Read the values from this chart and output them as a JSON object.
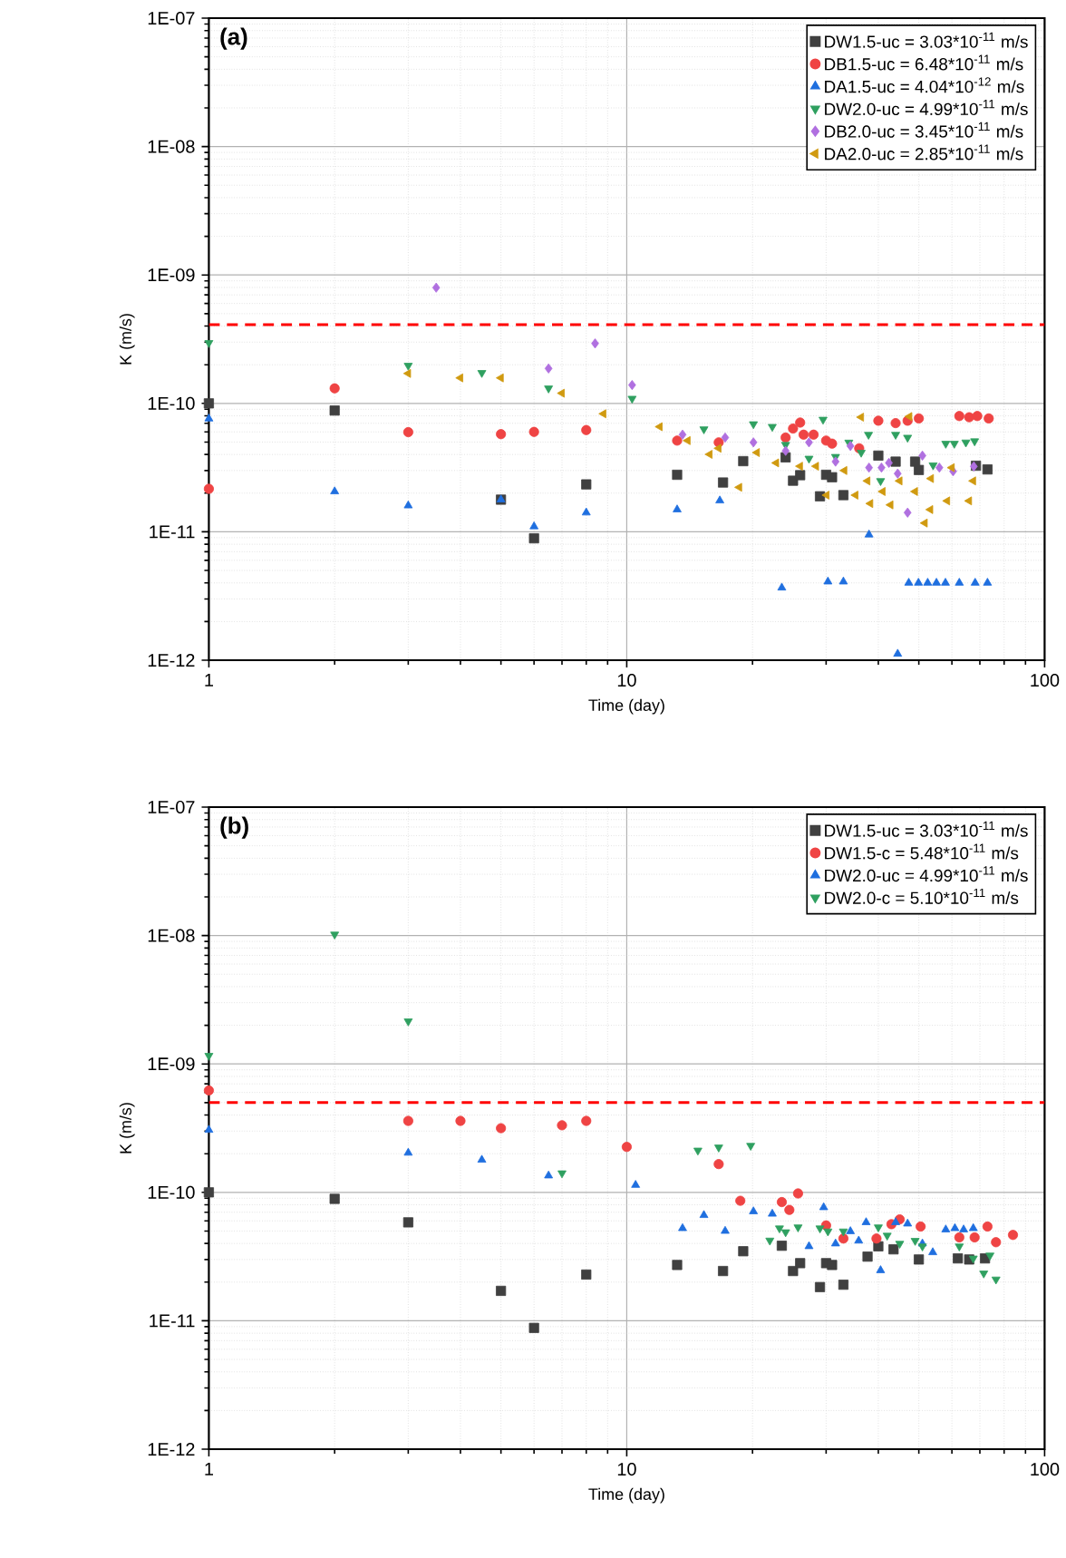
{
  "chart_data": [
    {
      "type": "scatter",
      "title": "(a)",
      "xlabel": "Time (day)",
      "ylabel": "K (m/s)",
      "log": "xy",
      "grid": true,
      "legend": "top right",
      "xlim": [
        1,
        100
      ],
      "ylim": [
        1e-12,
        1e-07
      ],
      "xticks": [
        1,
        10,
        100
      ],
      "yticks": [
        {
          "value": 1e-12,
          "label": "1E-12"
        },
        {
          "value": 1e-11,
          "label": "1E-11"
        },
        {
          "value": 1e-10,
          "label": "1E-10"
        },
        {
          "value": 1e-09,
          "label": "1E-09"
        },
        {
          "value": 1e-08,
          "label": "1E-08"
        },
        {
          "value": 1e-07,
          "label": "1E-07"
        }
      ],
      "ref_lines": [
        {
          "axis": "y",
          "value": 4.1e-10,
          "color": "#ff0000",
          "line_style": "dashed"
        }
      ],
      "series": [
        {
          "name": "DW1.5-uc  = 3.03*10$^{-11}$ m/s",
          "color": "#404040",
          "marker": "square",
          "x": [
            1,
            2,
            5,
            6,
            8,
            13.2,
            17,
            19,
            24,
            25,
            26,
            29,
            30,
            31,
            33,
            40,
            44,
            49,
            50,
            68.5,
            73
          ],
          "values": [
            1e-10,
            8.8e-11,
            1.78e-11,
            8.9e-12,
            2.34e-11,
            2.78e-11,
            2.42e-11,
            3.55e-11,
            3.8e-11,
            2.5e-11,
            2.76e-11,
            1.89e-11,
            2.78e-11,
            2.66e-11,
            1.93e-11,
            3.92e-11,
            3.52e-11,
            3.52e-11,
            3.03e-11,
            3.27e-11,
            3.06e-11
          ]
        },
        {
          "name": "DB1.5-uc  = 6.48*10$^{-11}$ m/s",
          "color": "#ef4444",
          "marker": "circle",
          "x": [
            1,
            2,
            3,
            5,
            6,
            8,
            13.2,
            16.6,
            24,
            25,
            26,
            26.5,
            28,
            30,
            31,
            36,
            40,
            44,
            47,
            50,
            62.5,
            66,
            69,
            73.5
          ],
          "values": [
            2.16e-11,
            1.31e-10,
            5.97e-11,
            5.76e-11,
            6e-11,
            6.2e-11,
            5.13e-11,
            4.97e-11,
            5.42e-11,
            6.37e-11,
            7.09e-11,
            5.71e-11,
            5.71e-11,
            5.13e-11,
            4.86e-11,
            4.47e-11,
            7.33e-11,
            7.02e-11,
            7.33e-11,
            7.64e-11,
            7.97e-11,
            7.8e-11,
            7.97e-11,
            7.64e-11
          ]
        },
        {
          "name": "DA1.5-uc  = 4.04*10$^{-12}$ m/s",
          "color": "#1f6fdf",
          "marker": "triangle",
          "x": [
            1,
            2,
            3,
            5,
            6,
            8,
            13.2,
            16.7,
            23.5,
            30.3,
            33,
            38,
            44.5,
            47.3,
            49.9,
            52.5,
            55.1,
            57.9,
            62.5,
            68.2,
            73
          ],
          "values": [
            7.6e-11,
            2.06e-11,
            1.6e-11,
            1.78e-11,
            1.1e-11,
            1.41e-11,
            1.49e-11,
            1.75e-11,
            3.67e-12,
            4.09e-12,
            4.09e-12,
            9.5e-12,
            1.12e-12,
            4e-12,
            4e-12,
            4e-12,
            4e-12,
            4e-12,
            4e-12,
            4e-12,
            4e-12
          ]
        },
        {
          "name": "DW2.0-uc  = 4.99*10$^{-11}$ m/s",
          "color": "#2fa060",
          "marker": "triangle-down",
          "x": [
            1,
            3,
            4.5,
            6.5,
            10.3,
            15.3,
            20.1,
            22.3,
            24,
            27.3,
            29.5,
            31.6,
            34,
            36.4,
            37.9,
            40.5,
            44,
            47,
            54.1,
            58,
            60.8,
            64.8,
            68
          ],
          "values": [
            2.96e-10,
            1.97e-10,
            1.73e-10,
            1.31e-10,
            1.09e-10,
            6.3e-11,
            6.9e-11,
            6.58e-11,
            4.76e-11,
            3.72e-11,
            7.48e-11,
            3.84e-11,
            4.96e-11,
            4.14e-11,
            5.71e-11,
            2.49e-11,
            5.71e-11,
            5.42e-11,
            3.3e-11,
            4.86e-11,
            4.86e-11,
            4.97e-11,
            5.08e-11
          ]
        },
        {
          "name": "DB2.0-uc  = 3.45*10$^{-11}$ m/s",
          "color": "#b070e0",
          "marker": "diamond",
          "x": [
            3.5,
            6.5,
            8.4,
            10.3,
            13.6,
            17.2,
            20.1,
            24,
            27.3,
            31.6,
            34.3,
            38,
            40.7,
            42.4,
            44.5,
            47,
            51,
            56,
            60.4,
            67.7
          ],
          "values": [
            7.97e-10,
            1.87e-10,
            2.93e-10,
            1.39e-10,
            5.71e-11,
            5.42e-11,
            4.97e-11,
            4.27e-11,
            4.97e-11,
            3.52e-11,
            4.66e-11,
            3.16e-11,
            3.16e-11,
            3.44e-11,
            2.84e-11,
            1.41e-11,
            3.92e-11,
            3.16e-11,
            2.96e-11,
            3.23e-11
          ]
        },
        {
          "name": "DA2.0-uc  = 2.85*10$^{-11}$ m/s",
          "color": "#d09a10",
          "marker": "triangle-left",
          "x": [
            3,
            4,
            5,
            7,
            8.8,
            12,
            14,
            15.8,
            16.6,
            18.6,
            20.5,
            22.8,
            26,
            28.4,
            30.1,
            33.2,
            35.3,
            36.4,
            37.7,
            38.3,
            41,
            42.8,
            45,
            47.5,
            49,
            51.7,
            53.3,
            53.5,
            58.5,
            60,
            66,
            67.5
          ],
          "values": [
            1.71e-10,
            1.58e-10,
            1.58e-10,
            1.2e-10,
            8.3e-11,
            6.58e-11,
            5.13e-11,
            4.01e-11,
            4.47e-11,
            2.22e-11,
            4.14e-11,
            3.44e-11,
            3.24e-11,
            3.24e-11,
            1.93e-11,
            3e-11,
            1.93e-11,
            7.81e-11,
            2.49e-11,
            1.66e-11,
            2.06e-11,
            1.62e-11,
            2.49e-11,
            7.9e-11,
            2.06e-11,
            1.17e-11,
            1.49e-11,
            2.6e-11,
            1.74e-11,
            3.16e-11,
            1.74e-11,
            2.49e-11
          ]
        }
      ]
    },
    {
      "type": "scatter",
      "title": "(b)",
      "xlabel": "Time (day)",
      "ylabel": "K (m/s)",
      "log": "xy",
      "grid": true,
      "legend": "top right",
      "xlim": [
        1,
        100
      ],
      "ylim": [
        1e-12,
        1e-07
      ],
      "xticks": [
        1,
        10,
        100
      ],
      "yticks": [
        {
          "value": 1e-12,
          "label": "1E-12"
        },
        {
          "value": 1e-11,
          "label": "1E-11"
        },
        {
          "value": 1e-10,
          "label": "1E-10"
        },
        {
          "value": 1e-09,
          "label": "1E-09"
        },
        {
          "value": 1e-08,
          "label": "1E-08"
        },
        {
          "value": 1e-07,
          "label": "1E-07"
        }
      ],
      "ref_lines": [
        {
          "axis": "y",
          "value": 5e-10,
          "color": "#ff0000",
          "line_style": "dashed"
        }
      ],
      "series": [
        {
          "name": "DW1.5-uc = 3.03*10$^{-11}$ m/s",
          "color": "#404040",
          "marker": "square",
          "x": [
            1,
            2,
            3,
            5,
            6,
            8,
            13.2,
            17,
            19,
            23.5,
            25,
            26,
            29,
            30,
            31,
            33,
            37.7,
            40,
            43.5,
            50,
            62,
            66,
            72
          ],
          "values": [
            1e-10,
            8.9e-11,
            5.84e-11,
            1.71e-11,
            8.8e-12,
            2.29e-11,
            2.72e-11,
            2.44e-11,
            3.48e-11,
            3.84e-11,
            2.44e-11,
            2.81e-11,
            1.83e-11,
            2.81e-11,
            2.72e-11,
            1.91e-11,
            3.16e-11,
            3.8e-11,
            3.6e-11,
            3e-11,
            3.06e-11,
            3e-11,
            3.06e-11
          ]
        },
        {
          "name": "DW1.5-c  = 5.48*10$^{-11}$ m/s",
          "color": "#ef4444",
          "marker": "circle",
          "x": [
            1,
            3,
            4,
            5,
            7,
            8,
            10,
            16.6,
            18.7,
            23.5,
            24.5,
            25.7,
            30,
            33,
            39.6,
            43,
            45,
            50.5,
            62.5,
            68,
            73,
            76.5,
            84
          ],
          "values": [
            6.22e-10,
            3.6e-10,
            3.6e-10,
            3.16e-10,
            3.33e-10,
            3.6e-10,
            2.26e-10,
            1.66e-10,
            8.6e-11,
            8.4e-11,
            7.3e-11,
            9.8e-11,
            5.53e-11,
            4.37e-11,
            4.37e-11,
            5.65e-11,
            6.16e-11,
            5.42e-11,
            4.46e-11,
            4.46e-11,
            5.42e-11,
            4.09e-11,
            4.66e-11
          ]
        },
        {
          "name": "DW2.0-uc = 4.99*10$^{-11}$ m/s",
          "color": "#1f6fdf",
          "marker": "triangle",
          "x": [
            1,
            3,
            4.5,
            6.5,
            10.5,
            13.6,
            15.3,
            17.2,
            20.1,
            22.3,
            27.3,
            29.6,
            31.6,
            34.3,
            35.9,
            37.4,
            40.5,
            44,
            47,
            51,
            54,
            58,
            61,
            64,
            67.5
          ],
          "values": [
            3.06e-10,
            2.03e-10,
            1.79e-10,
            1.35e-10,
            1.14e-10,
            5.25e-11,
            6.64e-11,
            5e-11,
            7.1e-11,
            6.8e-11,
            3.8e-11,
            7.64e-11,
            3.99e-11,
            4.97e-11,
            4.2e-11,
            5.84e-11,
            2.47e-11,
            5.84e-11,
            5.7e-11,
            3.99e-11,
            3.41e-11,
            5.13e-11,
            5.25e-11,
            5.13e-11,
            5.25e-11
          ]
        },
        {
          "name": "DW2.0-c  =  5.10*10$^{-11}$ m/s",
          "color": "#2fa060",
          "marker": "triangle-down",
          "x": [
            1,
            2,
            3,
            7,
            14.8,
            16.6,
            19.8,
            22,
            23.2,
            24,
            25.7,
            29,
            30.3,
            33,
            40,
            42,
            45,
            49,
            51,
            62.5,
            67.5,
            71.5,
            74,
            76.5
          ],
          "values": [
            1.16e-09,
            1.02e-08,
            2.15e-09,
            1.41e-10,
            2.12e-10,
            2.24e-10,
            2.31e-10,
            4.22e-11,
            5.25e-11,
            4.9e-11,
            5.35e-11,
            5.25e-11,
            4.97e-11,
            4.97e-11,
            5.35e-11,
            4.61e-11,
            3.99e-11,
            4.2e-11,
            3.8e-11,
            3.8e-11,
            3.06e-11,
            2.34e-11,
            3.23e-11,
            2.1e-11
          ]
        }
      ]
    }
  ]
}
